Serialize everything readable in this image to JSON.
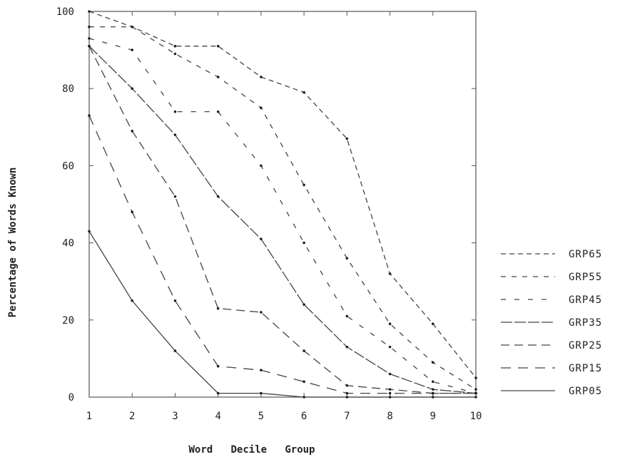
{
  "chart_data": {
    "type": "line",
    "title": "",
    "xlabel": "Word   Decile   Group",
    "ylabel": "Percentage of Words Known",
    "x": [
      1,
      2,
      3,
      4,
      5,
      6,
      7,
      8,
      9,
      10
    ],
    "xticks": [
      "1",
      "2",
      "3",
      "4",
      "5",
      "6",
      "7",
      "8",
      "9",
      "10"
    ],
    "yticks": [
      "0",
      "20",
      "40",
      "60",
      "80",
      "100"
    ],
    "xlim": [
      1,
      10
    ],
    "ylim": [
      0,
      100
    ],
    "grid": false,
    "legend_position": "right",
    "series": [
      {
        "name": "GRP65",
        "dash": "7,5",
        "values": [
          100,
          96,
          91,
          91,
          83,
          79,
          67,
          32,
          19,
          5
        ]
      },
      {
        "name": "GRP55",
        "dash": "7,8",
        "values": [
          96,
          96,
          89,
          83,
          75,
          55,
          36,
          19,
          9,
          2
        ]
      },
      {
        "name": "GRP45",
        "dash": "7,12",
        "values": [
          93,
          90,
          74,
          74,
          60,
          40,
          21,
          13,
          4,
          1
        ]
      },
      {
        "name": "GRP35",
        "dash": "16,3",
        "values": [
          91,
          80,
          68,
          52,
          41,
          24,
          13,
          6,
          2,
          1
        ]
      },
      {
        "name": "GRP25",
        "dash": "12,7",
        "values": [
          91,
          69,
          52,
          23,
          22,
          12,
          3,
          2,
          1,
          1
        ]
      },
      {
        "name": "GRP15",
        "dash": "14,10",
        "values": [
          73,
          48,
          25,
          8,
          7,
          4,
          1,
          1,
          1,
          1
        ]
      },
      {
        "name": "GRP05",
        "dash": "",
        "values": [
          43,
          25,
          12,
          1,
          1,
          0,
          0,
          0,
          0,
          0
        ]
      }
    ]
  }
}
